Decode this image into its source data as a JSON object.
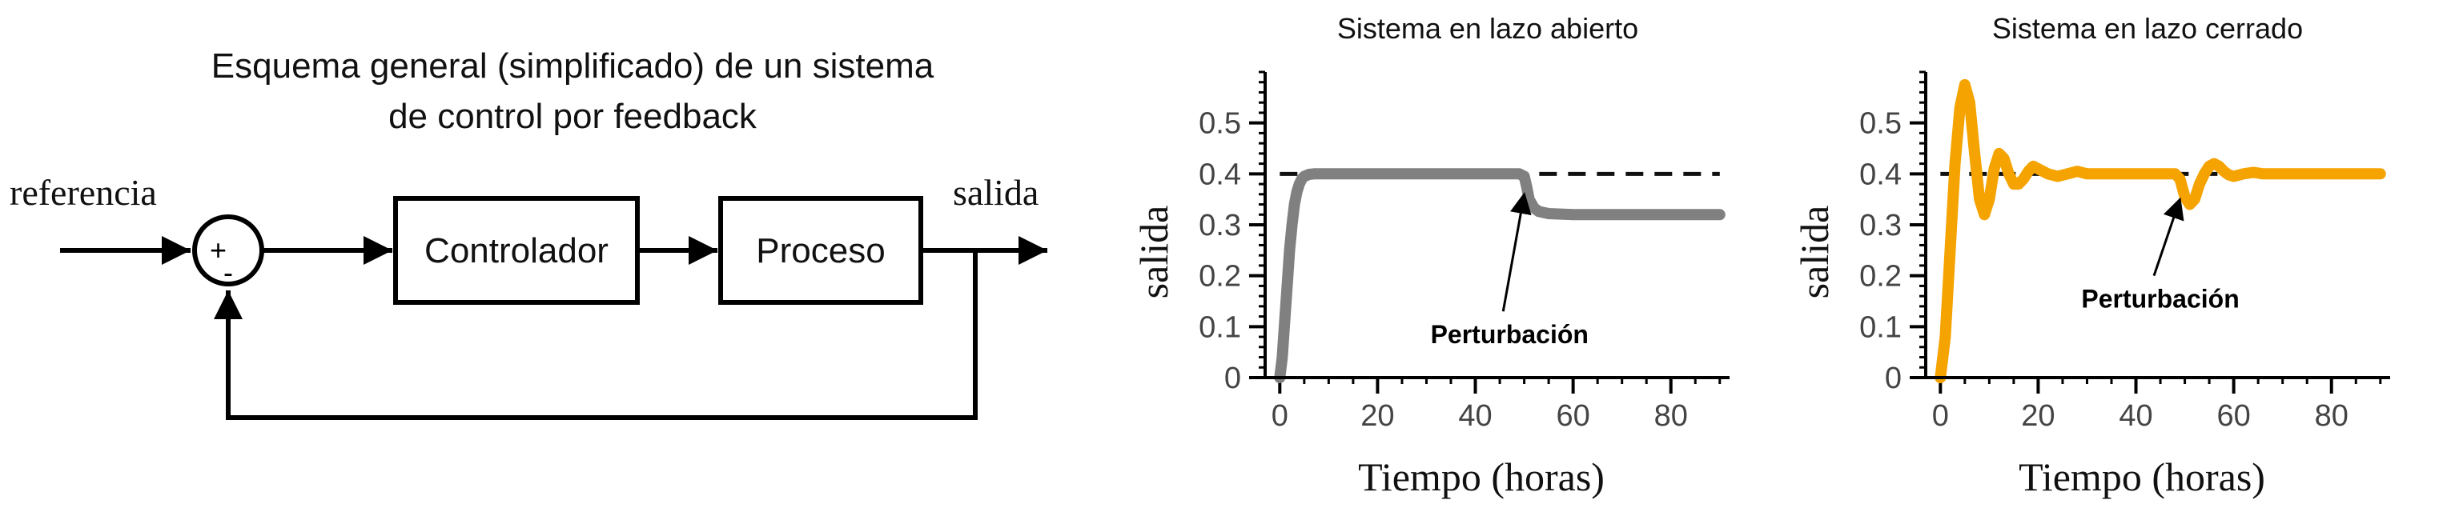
{
  "diagram": {
    "title_line1": "Esquema general (simplificado) de un sistema",
    "title_line2": "de control por feedback",
    "input_label": "referencia",
    "output_label": "salida",
    "plus_sign": "+",
    "minus_sign": "-",
    "controller_label": "Controlador",
    "process_label": "Proceso"
  },
  "chart_data": [
    {
      "type": "line",
      "title": "Sistema en lazo abierto",
      "xlabel": "Tiempo (horas)",
      "ylabel": "salida",
      "xlim": [
        -3,
        92
      ],
      "ylim": [
        0,
        0.6
      ],
      "xticks": [
        0,
        20,
        40,
        60,
        80
      ],
      "yticks": [
        0,
        0.1,
        0.2,
        0.3,
        0.4,
        0.5
      ],
      "ytick_labels": [
        "0",
        "0.1",
        "0.2",
        "0.3",
        "0.4",
        "0.5"
      ],
      "reference": 0.4,
      "annotation": "Perturbación",
      "annotation_target": [
        50,
        0.36
      ],
      "annotation_text_at": [
        47,
        0.13
      ],
      "series_color": "#808080",
      "x": [
        0,
        0.5,
        1,
        1.5,
        2,
        2.5,
        3,
        3.5,
        4,
        4.5,
        5,
        6,
        7,
        8,
        10,
        20,
        30,
        40,
        49,
        50,
        50.5,
        51,
        52,
        53,
        55,
        60,
        70,
        80,
        90
      ],
      "y": [
        0,
        0.04,
        0.11,
        0.18,
        0.25,
        0.3,
        0.34,
        0.365,
        0.38,
        0.39,
        0.395,
        0.399,
        0.4,
        0.4,
        0.4,
        0.4,
        0.4,
        0.4,
        0.4,
        0.395,
        0.375,
        0.35,
        0.333,
        0.326,
        0.322,
        0.32,
        0.32,
        0.32,
        0.32
      ]
    },
    {
      "type": "line",
      "title": "Sistema en lazo cerrado",
      "xlabel": "Tiempo (horas)",
      "ylabel": "salida",
      "xlim": [
        -3,
        92
      ],
      "ylim": [
        0,
        0.6
      ],
      "xticks": [
        0,
        20,
        40,
        60,
        80
      ],
      "yticks": [
        0,
        0.1,
        0.2,
        0.3,
        0.4,
        0.5
      ],
      "ytick_labels": [
        "0",
        "0.1",
        "0.2",
        "0.3",
        "0.4",
        "0.5"
      ],
      "reference": 0.4,
      "annotation": "Perturbación",
      "annotation_target": [
        49,
        0.35
      ],
      "annotation_text_at": [
        45,
        0.2
      ],
      "series_color": "#f5a300",
      "x": [
        0,
        1,
        2,
        3,
        4,
        5,
        6,
        7,
        8,
        9,
        10,
        11,
        12,
        13,
        14,
        15,
        16,
        17,
        18,
        19,
        20,
        22,
        24,
        26,
        28,
        30,
        35,
        40,
        45,
        48,
        49,
        50,
        51,
        52,
        53,
        54,
        55,
        56,
        57,
        58,
        59,
        60,
        62,
        64,
        66,
        70,
        80,
        90
      ],
      "y": [
        0,
        0.08,
        0.25,
        0.42,
        0.53,
        0.575,
        0.54,
        0.44,
        0.35,
        0.32,
        0.35,
        0.41,
        0.44,
        0.43,
        0.4,
        0.38,
        0.38,
        0.39,
        0.405,
        0.415,
        0.41,
        0.4,
        0.395,
        0.4,
        0.405,
        0.4,
        0.4,
        0.4,
        0.4,
        0.4,
        0.39,
        0.355,
        0.34,
        0.35,
        0.38,
        0.4,
        0.415,
        0.42,
        0.415,
        0.405,
        0.398,
        0.395,
        0.4,
        0.403,
        0.4,
        0.4,
        0.4,
        0.4
      ]
    }
  ]
}
